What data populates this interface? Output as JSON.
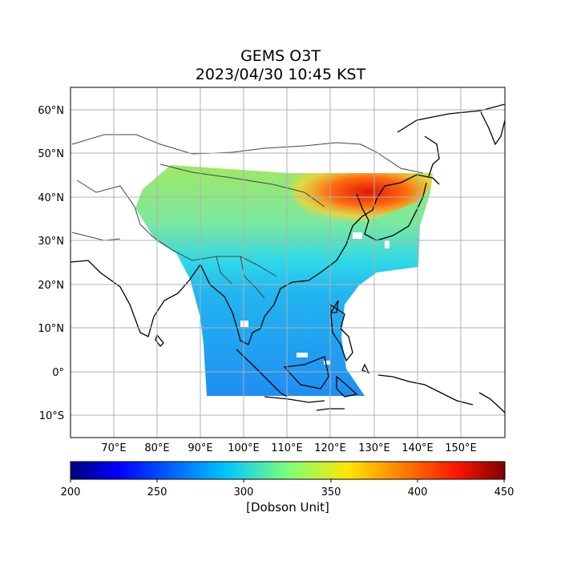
{
  "title": "GEMS O3T",
  "subtitle": "2023/04/30 10:45 KST",
  "map": {
    "lon_ticks": [
      "70°E",
      "80°E",
      "90°E",
      "100°E",
      "110°E",
      "120°E",
      "130°E",
      "140°E",
      "150°E"
    ],
    "lat_ticks": [
      "60°N",
      "50°N",
      "40°N",
      "30°N",
      "20°N",
      "10°N",
      "0°",
      "10°S"
    ],
    "lon_range": [
      60,
      160
    ],
    "lat_range": [
      -15,
      65
    ],
    "grid": true
  },
  "colorbar": {
    "label": "[Dobson Unit]",
    "ticks": [
      "200",
      "250",
      "300",
      "350",
      "400",
      "450"
    ],
    "range": [
      200,
      450
    ],
    "colormap": "jet"
  },
  "colors": {
    "grid": "#b0b0b0",
    "coast": "#000000",
    "border": "#444444",
    "high_ozone": "#e8200a",
    "low_ozone": "#1e90ff",
    "mid_ozone": "#7ff07f"
  }
}
